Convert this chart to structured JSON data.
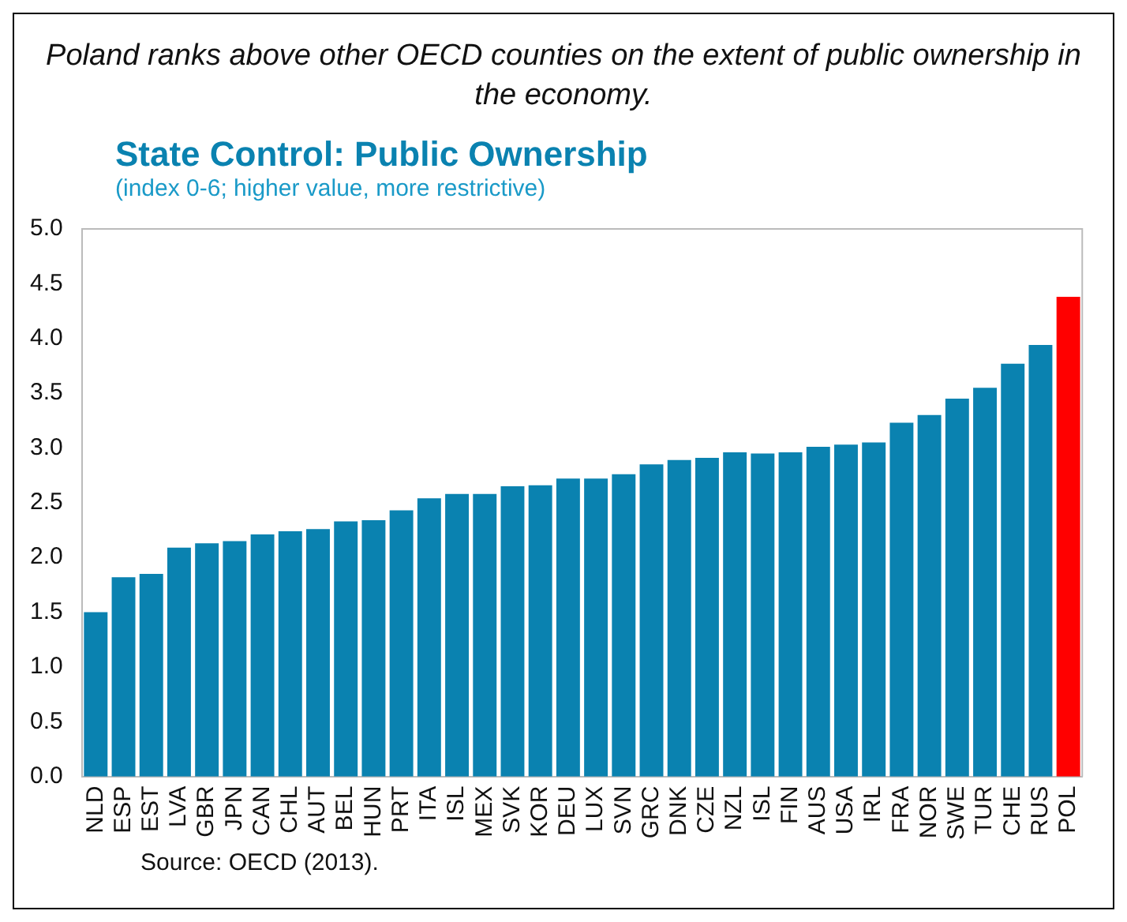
{
  "chart_data": {
    "type": "bar",
    "title": "State Control: Public Ownership",
    "subtitle": "(index 0-6; higher value, more restrictive)",
    "annotations": [
      "Poland ranks above other OECD counties on the extent of public ownership in the economy.",
      "Source: OECD (2013)."
    ],
    "categories": [
      "NLD",
      "ESP",
      "EST",
      "LVA",
      "GBR",
      "JPN",
      "CAN",
      "CHL",
      "AUT",
      "BEL",
      "HUN",
      "PRT",
      "ITA",
      "ISL",
      "MEX",
      "SVK",
      "KOR",
      "DEU",
      "LUX",
      "SVN",
      "GRC",
      "DNK",
      "CZE",
      "NZL",
      "ISL",
      "FIN",
      "AUS",
      "USA",
      "IRL",
      "FRA",
      "NOR",
      "SWE",
      "TUR",
      "CHE",
      "RUS",
      "POL"
    ],
    "values": [
      1.5,
      1.82,
      1.85,
      2.09,
      2.13,
      2.15,
      2.21,
      2.24,
      2.26,
      2.33,
      2.34,
      2.43,
      2.54,
      2.58,
      2.58,
      2.65,
      2.66,
      2.72,
      2.72,
      2.76,
      2.85,
      2.89,
      2.91,
      2.96,
      2.95,
      2.96,
      3.01,
      3.03,
      3.05,
      3.23,
      3.3,
      3.45,
      3.55,
      3.77,
      3.94,
      4.38
    ],
    "colors": [
      "#0a82b0",
      "#0a82b0",
      "#0a82b0",
      "#0a82b0",
      "#0a82b0",
      "#0a82b0",
      "#0a82b0",
      "#0a82b0",
      "#0a82b0",
      "#0a82b0",
      "#0a82b0",
      "#0a82b0",
      "#0a82b0",
      "#0a82b0",
      "#0a82b0",
      "#0a82b0",
      "#0a82b0",
      "#0a82b0",
      "#0a82b0",
      "#0a82b0",
      "#0a82b0",
      "#0a82b0",
      "#0a82b0",
      "#0a82b0",
      "#0a82b0",
      "#0a82b0",
      "#0a82b0",
      "#0a82b0",
      "#0a82b0",
      "#0a82b0",
      "#0a82b0",
      "#0a82b0",
      "#0a82b0",
      "#0a82b0",
      "#0a82b0",
      "#ff0000"
    ],
    "ylim": [
      0,
      5
    ],
    "yticks": [
      {
        "value": 0,
        "label": "0.0"
      },
      {
        "value": 0.5,
        "label": "0.5"
      },
      {
        "value": 1,
        "label": "1.0"
      },
      {
        "value": 1.5,
        "label": "1.5"
      },
      {
        "value": 2,
        "label": "2.0"
      },
      {
        "value": 2.5,
        "label": "2.5"
      },
      {
        "value": 3,
        "label": "3.0"
      },
      {
        "value": 3.5,
        "label": "3.5"
      },
      {
        "value": 4,
        "label": "4.0"
      },
      {
        "value": 4.5,
        "label": "4.5"
      },
      {
        "value": 5,
        "label": "5.0"
      }
    ],
    "grid": false,
    "legend": false
  }
}
